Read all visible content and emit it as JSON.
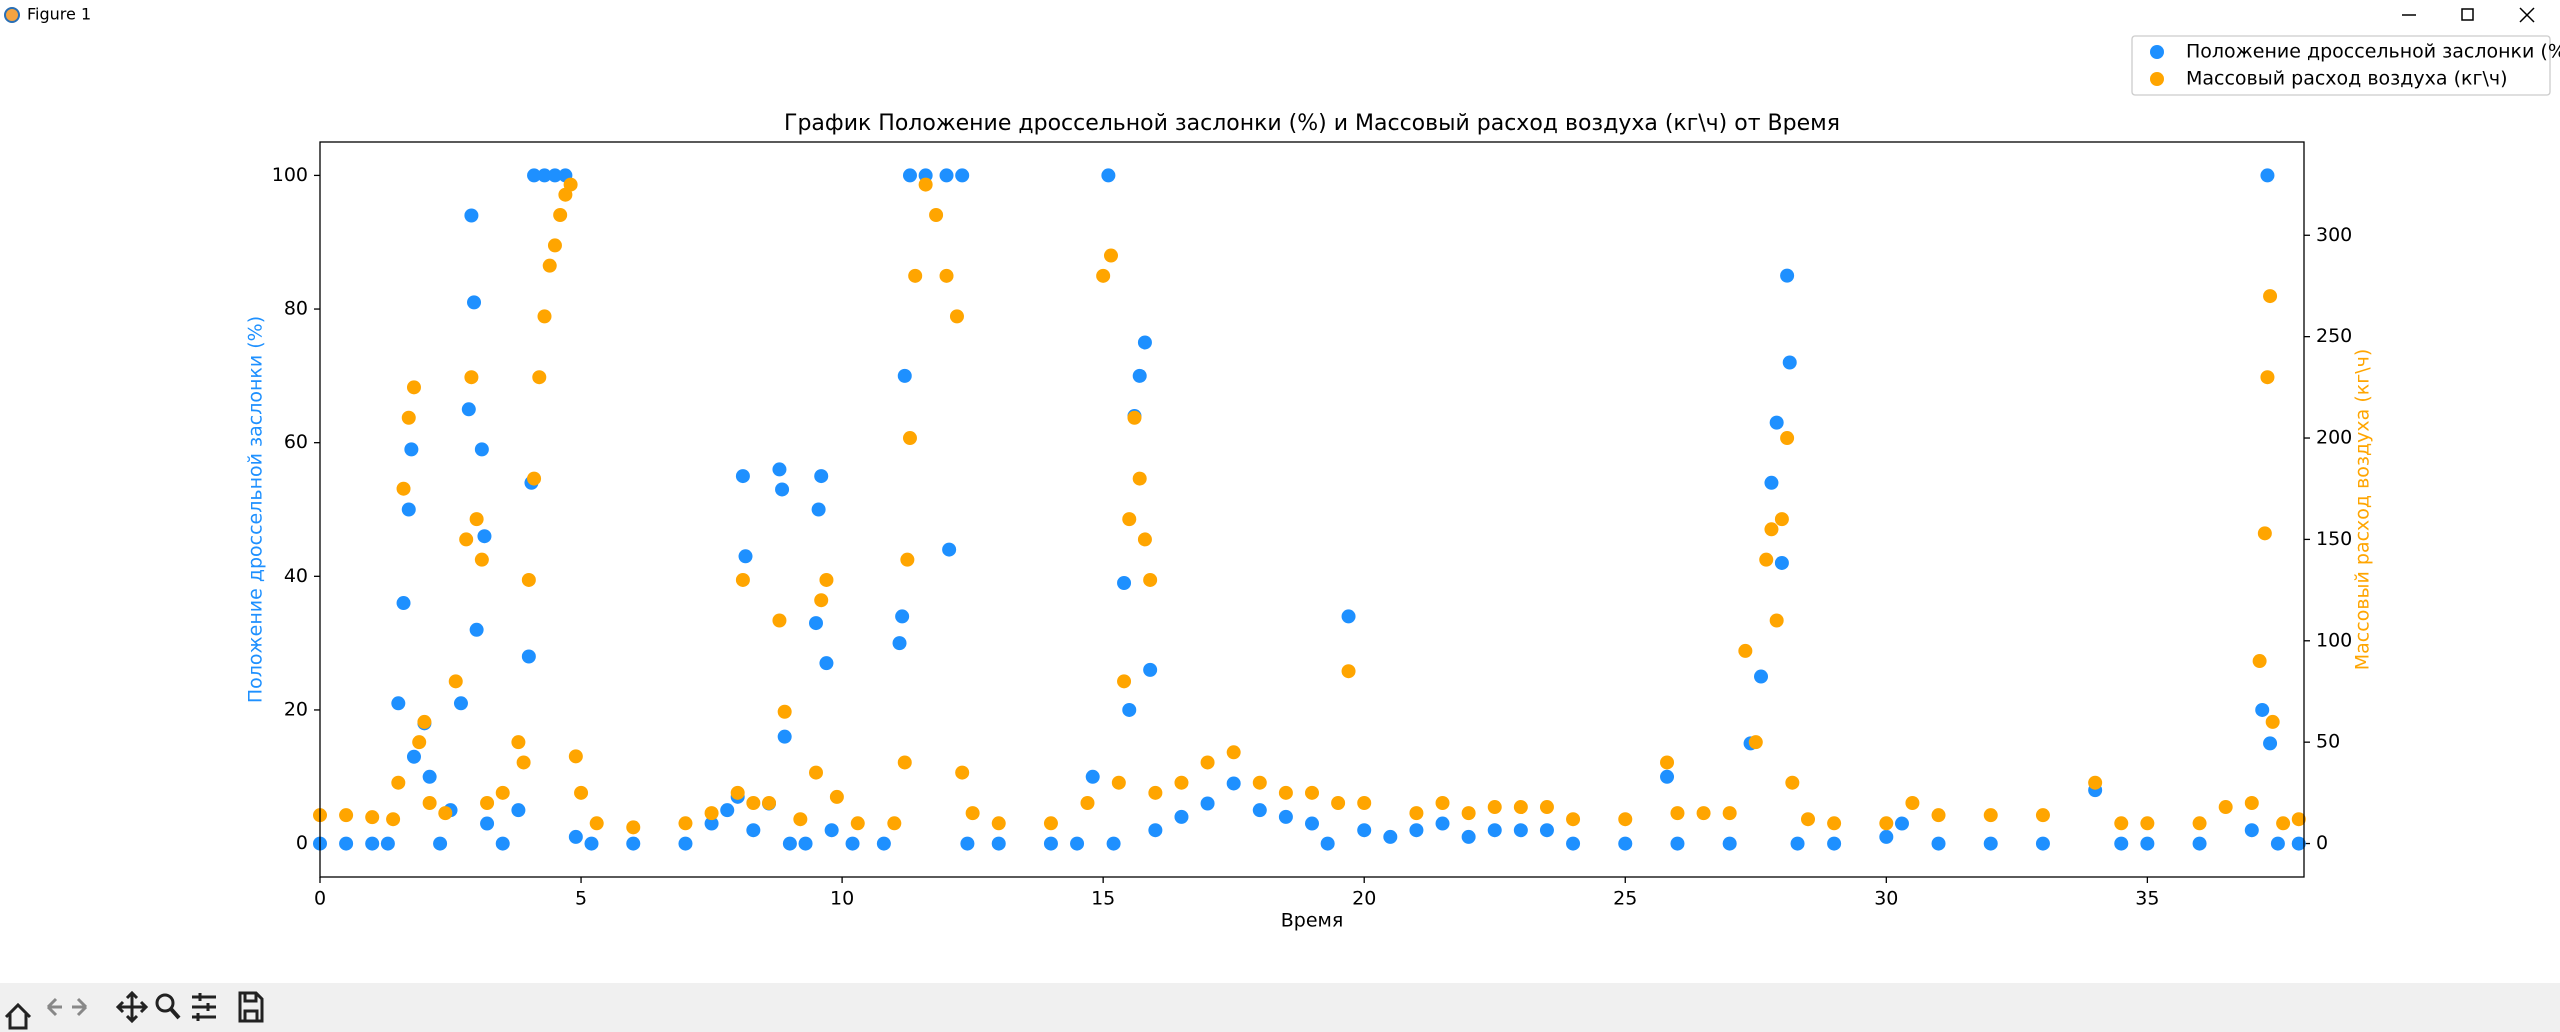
{
  "window": {
    "title": "Figure 1"
  },
  "chart_data": {
    "type": "scatter",
    "title": "График Положение дроссельной заслонки (%) и Массовый расход воздуха (кг\\ч) от Время",
    "x_label": "Время",
    "y_label": "Положение дроссельной заслонки (%)",
    "y2_label": "Массовый расход воздуха (кг\\ч)",
    "xlim": [
      0,
      38
    ],
    "ylim": [
      -5,
      105
    ],
    "y2lim": [
      -16.5,
      346
    ],
    "xticks": [
      0,
      5,
      10,
      15,
      20,
      25,
      30,
      35
    ],
    "yticks": [
      0,
      20,
      40,
      60,
      80,
      100
    ],
    "y2ticks": [
      0,
      50,
      100,
      150,
      200,
      250,
      300
    ],
    "legend": "upper right",
    "series": [
      {
        "name": "Положение дроссельной заслонки (%)",
        "color": "#1e90ff",
        "axis": "y",
        "x": [
          0,
          0.5,
          1,
          1.3,
          1.5,
          1.6,
          1.7,
          1.75,
          1.8,
          2,
          2.1,
          2.3,
          2.5,
          2.7,
          2.85,
          2.9,
          2.95,
          3,
          3.1,
          3.15,
          3.2,
          3.5,
          3.8,
          4,
          4.05,
          4.1,
          4.3,
          4.5,
          4.7,
          4.9,
          5.2,
          6,
          7,
          7.5,
          7.8,
          8,
          8.1,
          8.15,
          8.3,
          8.6,
          8.8,
          8.85,
          8.9,
          9,
          9.3,
          9.5,
          9.55,
          9.6,
          9.7,
          9.8,
          10.2,
          10.8,
          11.1,
          11.15,
          11.2,
          11.3,
          11.6,
          12,
          12.05,
          12.3,
          12.4,
          13,
          14,
          14.5,
          14.8,
          15.1,
          15.2,
          15.4,
          15.5,
          15.6,
          15.7,
          15.8,
          15.9,
          16,
          16.5,
          17,
          17.5,
          18,
          18.5,
          19,
          19.3,
          19.7,
          20,
          20.5,
          21,
          21.5,
          22,
          22.5,
          23,
          23.5,
          24,
          25,
          25.8,
          26,
          27,
          27.4,
          27.6,
          27.8,
          27.9,
          28,
          28.1,
          28.15,
          28.3,
          29,
          30,
          30.3,
          31,
          32,
          33,
          34,
          34.5,
          35,
          36,
          37,
          37.2,
          37.3,
          37.35,
          37.5,
          37.9
        ],
        "values": [
          0,
          0,
          0,
          0,
          21,
          36,
          50,
          59,
          13,
          18,
          10,
          0,
          5,
          21,
          65,
          94,
          81,
          32,
          59,
          46,
          3,
          0,
          5,
          28,
          54,
          100,
          100,
          100,
          100,
          1,
          0,
          0,
          0,
          3,
          5,
          7,
          55,
          43,
          2,
          6,
          56,
          53,
          16,
          0,
          0,
          33,
          50,
          55,
          27,
          2,
          0,
          0,
          30,
          34,
          70,
          100,
          100,
          100,
          44,
          100,
          0,
          0,
          0,
          0,
          10,
          100,
          0,
          39,
          20,
          64,
          70,
          75,
          26,
          2,
          4,
          6,
          9,
          5,
          4,
          3,
          0,
          34,
          2,
          1,
          2,
          3,
          1,
          2,
          2,
          2,
          0,
          0,
          10,
          0,
          0,
          15,
          25,
          54,
          63,
          42,
          85,
          72,
          0,
          0,
          1,
          3,
          0,
          0,
          0,
          8,
          0,
          0,
          0,
          2,
          20,
          100,
          15,
          0,
          0
        ]
      },
      {
        "name": "Массовый расход воздуха (кг\\ч)",
        "color": "#ffa500",
        "axis": "y2",
        "x": [
          0,
          0.5,
          1,
          1.4,
          1.5,
          1.6,
          1.7,
          1.8,
          1.9,
          2,
          2.1,
          2.4,
          2.6,
          2.8,
          2.9,
          3,
          3.1,
          3.2,
          3.5,
          3.8,
          3.9,
          4,
          4.1,
          4.2,
          4.3,
          4.4,
          4.5,
          4.6,
          4.7,
          4.8,
          4.9,
          5,
          5.3,
          6,
          7,
          7.5,
          8,
          8.1,
          8.3,
          8.6,
          8.8,
          8.9,
          9.2,
          9.5,
          9.6,
          9.7,
          9.9,
          10.3,
          11,
          11.2,
          11.25,
          11.3,
          11.4,
          11.6,
          11.8,
          12,
          12.2,
          12.3,
          12.5,
          13,
          14,
          14.7,
          15,
          15.15,
          15.3,
          15.4,
          15.5,
          15.6,
          15.7,
          15.8,
          15.9,
          16,
          16.5,
          17,
          17.5,
          18,
          18.5,
          19,
          19.5,
          19.7,
          20,
          21,
          21.5,
          22,
          22.5,
          23,
          23.5,
          24,
          25,
          25.8,
          26,
          26.5,
          27,
          27.3,
          27.5,
          27.7,
          27.8,
          27.9,
          28,
          28.1,
          28.2,
          28.5,
          29,
          30,
          30.5,
          31,
          32,
          33,
          34,
          34.5,
          35,
          36,
          36.5,
          37,
          37.15,
          37.25,
          37.3,
          37.35,
          37.4,
          37.6,
          37.9
        ],
        "values": [
          14,
          14,
          13,
          12,
          30,
          175,
          210,
          225,
          50,
          60,
          20,
          15,
          80,
          150,
          230,
          160,
          140,
          20,
          25,
          50,
          40,
          130,
          180,
          230,
          260,
          285,
          295,
          310,
          320,
          325,
          43,
          25,
          10,
          8,
          10,
          15,
          25,
          130,
          20,
          20,
          110,
          65,
          12,
          35,
          120,
          130,
          23,
          10,
          10,
          40,
          140,
          200,
          280,
          325,
          310,
          280,
          260,
          35,
          15,
          10,
          10,
          20,
          280,
          290,
          30,
          80,
          160,
          210,
          180,
          150,
          130,
          25,
          30,
          40,
          45,
          30,
          25,
          25,
          20,
          85,
          20,
          15,
          20,
          15,
          18,
          18,
          18,
          12,
          12,
          40,
          15,
          15,
          15,
          95,
          50,
          140,
          155,
          110,
          160,
          200,
          30,
          12,
          10,
          10,
          20,
          14,
          14,
          14,
          30,
          10,
          10,
          10,
          18,
          20,
          90,
          153,
          230,
          270,
          60,
          10,
          12
        ]
      }
    ]
  }
}
